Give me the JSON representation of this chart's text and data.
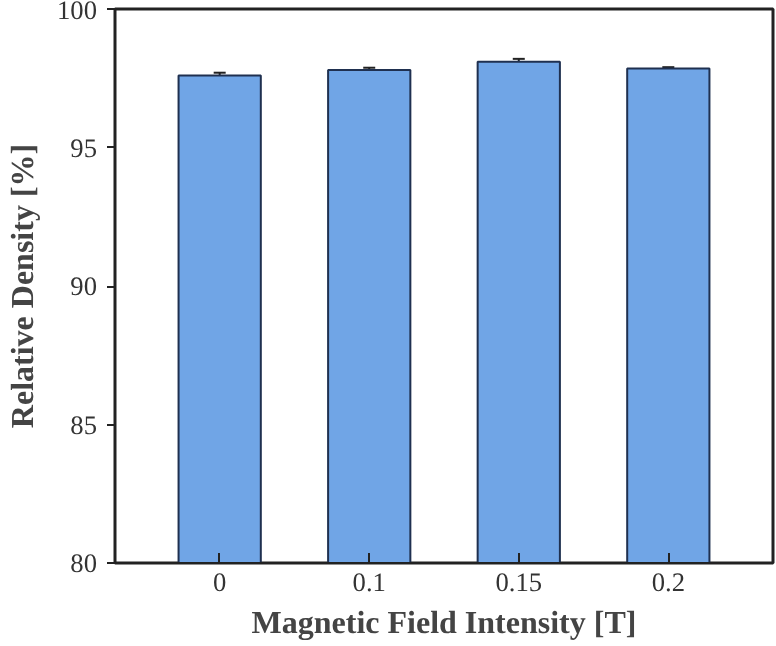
{
  "chart_data": {
    "type": "bar",
    "xlabel": "Magnetic Field Intensity [T]",
    "ylabel": "Relative Density [%]",
    "categories": [
      "0",
      "0.1",
      "0.15",
      "0.2"
    ],
    "values": [
      97.6,
      97.8,
      98.1,
      97.85
    ],
    "errors": [
      0.1,
      0.08,
      0.1,
      0.05
    ],
    "color": "#70a5e6",
    "ylim": [
      80,
      100
    ],
    "yticks": [
      80,
      85,
      90,
      95,
      100
    ],
    "grid": false
  }
}
